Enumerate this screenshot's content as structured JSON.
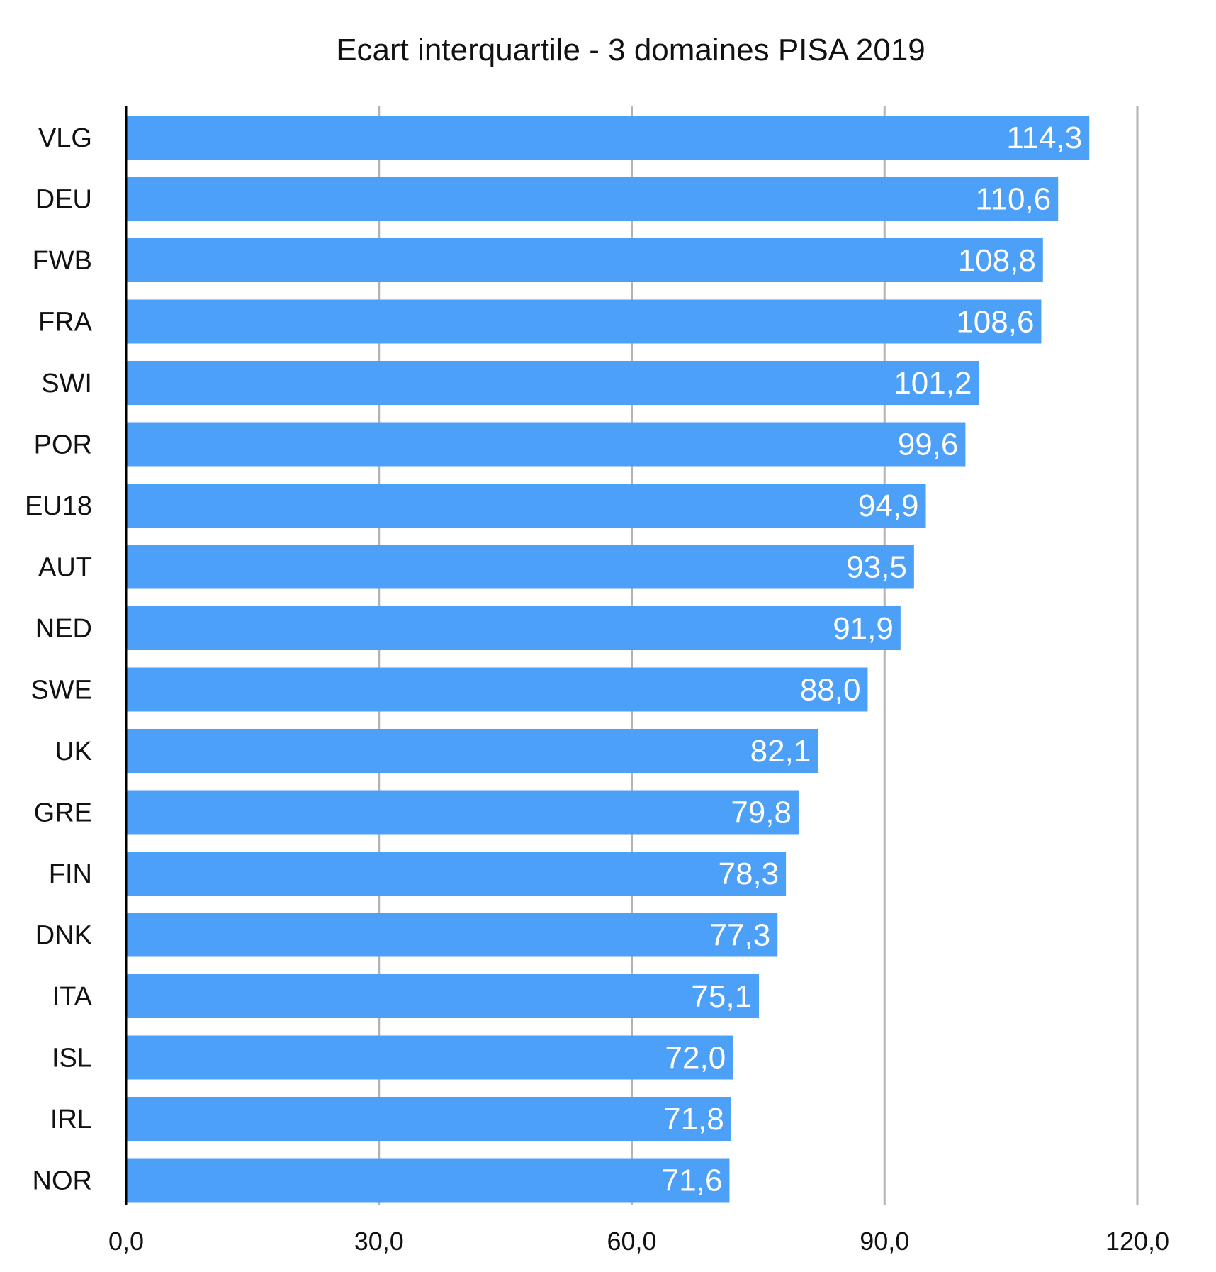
{
  "chart_data": {
    "type": "bar",
    "orientation": "horizontal",
    "title": "Ecart interquartile - 3 domaines PISA 2019",
    "xlabel": "",
    "ylabel": "",
    "xlim": [
      0,
      120
    ],
    "x_ticks": [
      "0,0",
      "30,0",
      "60,0",
      "90,0",
      "120,0"
    ],
    "x_tick_values": [
      0,
      30,
      60,
      90,
      120
    ],
    "grid": true,
    "categories": [
      "VLG",
      "DEU",
      "FWB",
      "FRA",
      "SWI",
      "POR",
      "EU18",
      "AUT",
      "NED",
      "SWE",
      "UK",
      "GRE",
      "FIN",
      "DNK",
      "ITA",
      "ISL",
      "IRL",
      "NOR"
    ],
    "values": [
      114.3,
      110.6,
      108.8,
      108.6,
      101.2,
      99.6,
      94.9,
      93.5,
      91.9,
      88.0,
      82.1,
      79.8,
      78.3,
      77.3,
      75.1,
      72.0,
      71.8,
      71.6
    ],
    "value_labels": [
      "114,3",
      "110,6",
      "108,8",
      "108,6",
      "101,2",
      "99,6",
      "94,9",
      "93,5",
      "91,9",
      "88,0",
      "82,1",
      "79,8",
      "78,3",
      "77,3",
      "75,1",
      "72,0",
      "71,8",
      "71,6"
    ],
    "colors": {
      "bar": "#4da0f7",
      "grid": "#b3b3b3",
      "axis": "#000000",
      "label": "#ffffff",
      "text": "#111111"
    }
  }
}
